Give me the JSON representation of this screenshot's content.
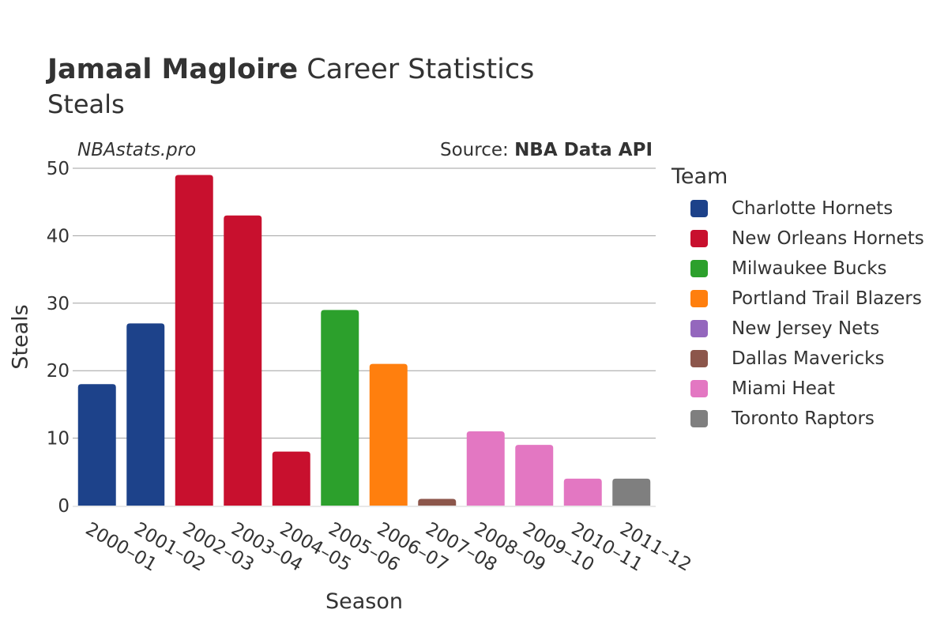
{
  "header": {
    "player": "Jamaal Magloire",
    "title_rest": "Career Statistics",
    "subtitle": "Steals",
    "watermark": "NBAstats.pro",
    "source_prefix": "Source: ",
    "source_name": "NBA Data API"
  },
  "chart_data": {
    "type": "bar",
    "title": "Jamaal Magloire Career Statistics",
    "subtitle": "Steals",
    "xlabel": "Season",
    "ylabel": "Steals",
    "ylim": [
      0,
      50
    ],
    "yticks": [
      0,
      10,
      20,
      30,
      40,
      50
    ],
    "categories": [
      "2000–01",
      "2001–02",
      "2002–03",
      "2003–04",
      "2004–05",
      "2005–06",
      "2006–07",
      "2007–08",
      "2008–09",
      "2009–10",
      "2010–11",
      "2011–12"
    ],
    "values": [
      18,
      27,
      49,
      43,
      8,
      29,
      21,
      1,
      11,
      9,
      4,
      4
    ],
    "teams": [
      "Charlotte Hornets",
      "Charlotte Hornets",
      "New Orleans Hornets",
      "New Orleans Hornets",
      "New Orleans Hornets",
      "Milwaukee Bucks",
      "Portland Trail Blazers",
      "Dallas Mavericks",
      "Miami Heat",
      "Miami Heat",
      "Miami Heat",
      "Toronto Raptors"
    ],
    "grid": true,
    "legend_position": "right"
  },
  "legend": {
    "title": "Team",
    "items": [
      {
        "name": "Charlotte Hornets",
        "color": "#1d428a"
      },
      {
        "name": "New Orleans Hornets",
        "color": "#c8102e"
      },
      {
        "name": "Milwaukee Bucks",
        "color": "#2ca02c"
      },
      {
        "name": "Portland Trail Blazers",
        "color": "#ff7f0e"
      },
      {
        "name": "New Jersey Nets",
        "color": "#9467bd"
      },
      {
        "name": "Dallas Mavericks",
        "color": "#8c564b"
      },
      {
        "name": "Miami Heat",
        "color": "#e377c2"
      },
      {
        "name": "Toronto Raptors",
        "color": "#7f7f7f"
      }
    ]
  }
}
